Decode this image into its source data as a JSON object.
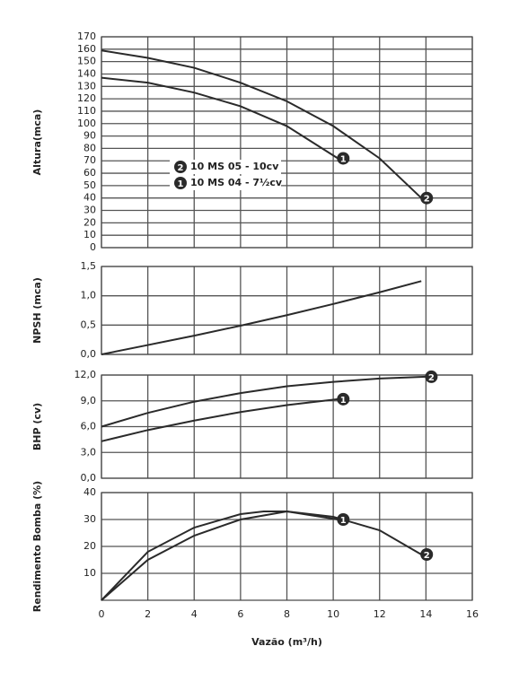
{
  "chart_data": [
    {
      "type": "line",
      "y_label": "Altura(mca)",
      "ylim": [
        0,
        170
      ],
      "yticks": [
        0,
        10,
        20,
        30,
        40,
        50,
        60,
        70,
        80,
        90,
        100,
        110,
        120,
        130,
        140,
        150,
        160,
        170
      ],
      "series": [
        {
          "name": "10 MS 05 - 10cv",
          "marker": "2",
          "color": "#2a2a2a",
          "x": [
            0,
            2,
            4,
            6,
            8,
            10,
            12,
            13.8
          ],
          "values": [
            159,
            153,
            145,
            133,
            118,
            98,
            72,
            40
          ]
        },
        {
          "name": "10 MS 04 - 7½cv",
          "marker": "1",
          "color": "#2a2a2a",
          "x": [
            0,
            2,
            4,
            6,
            8,
            10.2
          ],
          "values": [
            137,
            133,
            125,
            114,
            98,
            72
          ]
        }
      ]
    },
    {
      "type": "line",
      "y_label": "NPSH (mca)",
      "ylim": [
        0,
        1.5
      ],
      "yticks": [
        {
          "value": 0,
          "label": "0,0"
        },
        {
          "value": 0.5,
          "label": "0,5"
        },
        {
          "value": 1,
          "label": "1,0"
        },
        {
          "value": 1.5,
          "label": "1,5"
        }
      ],
      "series": [
        {
          "color": "#2a2a2a",
          "x": [
            0,
            2,
            4,
            6,
            8,
            10,
            12,
            13.8
          ],
          "values": [
            0,
            0.16,
            0.32,
            0.49,
            0.67,
            0.86,
            1.06,
            1.25
          ]
        }
      ]
    },
    {
      "type": "line",
      "y_label": "BHP (cv)",
      "ylim": [
        0,
        12
      ],
      "yticks": [
        {
          "value": 0,
          "label": "0,0"
        },
        {
          "value": 3,
          "label": "3,0"
        },
        {
          "value": 6,
          "label": "6,0"
        },
        {
          "value": 9,
          "label": "9,0"
        },
        {
          "value": 12,
          "label": "12,0"
        }
      ],
      "series": [
        {
          "marker": "2",
          "color": "#2a2a2a",
          "x": [
            0,
            2,
            4,
            6,
            8,
            10,
            12,
            14
          ],
          "values": [
            6.0,
            7.6,
            8.9,
            9.9,
            10.7,
            11.2,
            11.6,
            11.8
          ]
        },
        {
          "marker": "1",
          "color": "#2a2a2a",
          "x": [
            0,
            2,
            4,
            6,
            8,
            10.2
          ],
          "values": [
            4.3,
            5.6,
            6.7,
            7.7,
            8.5,
            9.2
          ]
        }
      ]
    },
    {
      "type": "line",
      "y_label": "Rendimento Bomba (%)",
      "x_label": "Vazão (m³/h)",
      "xlim": [
        0,
        16
      ],
      "xticks": [
        0,
        2,
        4,
        6,
        8,
        10,
        12,
        14,
        16
      ],
      "ylim": [
        0,
        40
      ],
      "yticks": [
        10,
        20,
        30,
        40
      ],
      "series": [
        {
          "marker": "2",
          "color": "#2a2a2a",
          "x": [
            0,
            2,
            4,
            6,
            7,
            8,
            10,
            12,
            13.8
          ],
          "values": [
            0,
            18,
            27,
            32,
            33,
            33,
            31,
            26,
            17
          ]
        },
        {
          "marker": "1",
          "color": "#2a2a2a",
          "x": [
            0,
            2,
            4,
            6,
            8,
            10.2
          ],
          "values": [
            0,
            15,
            24,
            30,
            33,
            30
          ]
        }
      ]
    }
  ]
}
